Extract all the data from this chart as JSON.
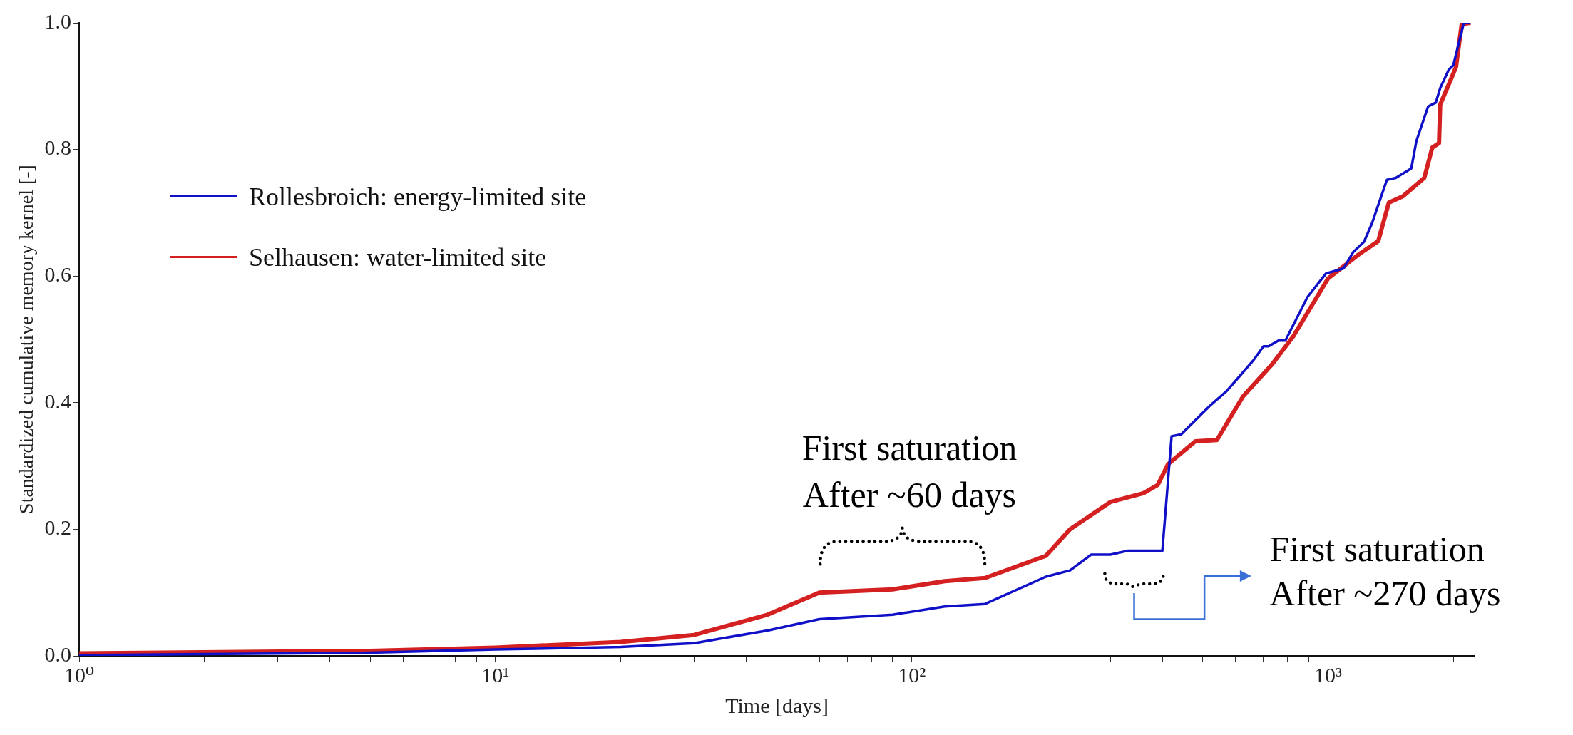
{
  "chart_data": {
    "type": "line",
    "xlabel": "Time [days]",
    "ylabel": "Standardized cumulative memory kernel [-]",
    "log": "x",
    "xlim": [
      1,
      2250
    ],
    "ylim": [
      0,
      1
    ],
    "xticks": [
      {
        "value": 1,
        "label": "10⁰"
      },
      {
        "value": 2,
        "label": null
      },
      {
        "value": 3,
        "label": null
      },
      {
        "value": 4,
        "label": null
      },
      {
        "value": 5,
        "label": null
      },
      {
        "value": 6,
        "label": null
      },
      {
        "value": 7,
        "label": null
      },
      {
        "value": 8,
        "label": null
      },
      {
        "value": 9,
        "label": null
      },
      {
        "value": 10,
        "label": "10¹"
      },
      {
        "value": 20,
        "label": null
      },
      {
        "value": 30,
        "label": null
      },
      {
        "value": 40,
        "label": null
      },
      {
        "value": 50,
        "label": null
      },
      {
        "value": 60,
        "label": null
      },
      {
        "value": 70,
        "label": null
      },
      {
        "value": 80,
        "label": null
      },
      {
        "value": 90,
        "label": null
      },
      {
        "value": 100,
        "label": "10²"
      },
      {
        "value": 200,
        "label": null
      },
      {
        "value": 300,
        "label": null
      },
      {
        "value": 400,
        "label": null
      },
      {
        "value": 500,
        "label": null
      },
      {
        "value": 600,
        "label": null
      },
      {
        "value": 700,
        "label": null
      },
      {
        "value": 800,
        "label": null
      },
      {
        "value": 900,
        "label": null
      },
      {
        "value": 1000,
        "label": "10³"
      },
      {
        "value": 2000,
        "label": null
      }
    ],
    "yticks": [
      {
        "value": 0,
        "label": "0.0"
      },
      0.2,
      0.4,
      0.6,
      0.8,
      {
        "value": 1,
        "label": "1.0"
      }
    ],
    "grid": false,
    "legend": "top left",
    "marker": "none",
    "line_style": "solid",
    "series": [
      {
        "name": "Rollesbroich: energy-limited site",
        "color": "#1010c8",
        "x": [
          1,
          5,
          10,
          20,
          30,
          45,
          60,
          90,
          120,
          150,
          210,
          240,
          270,
          300,
          330,
          400,
          421,
          444,
          520,
          570,
          610,
          662,
          700,
          720,
          760,
          790,
          893,
          989,
          1090,
          1150,
          1220,
          1275,
          1385,
          1455,
          1585,
          1630,
          1740,
          1815,
          1860,
          1950,
          2000,
          2120,
          2200
        ],
        "values": [
          0.001,
          0.005,
          0.01,
          0.014,
          0.02,
          0.04,
          0.058,
          0.065,
          0.078,
          0.082,
          0.125,
          0.135,
          0.16,
          0.16,
          0.166,
          0.166,
          0.347,
          0.35,
          0.395,
          0.418,
          0.44,
          0.467,
          0.489,
          0.489,
          0.498,
          0.498,
          0.567,
          0.604,
          0.612,
          0.638,
          0.654,
          0.683,
          0.752,
          0.755,
          0.77,
          0.813,
          0.868,
          0.874,
          0.897,
          0.926,
          0.933,
          1.0,
          1.0
        ]
      },
      {
        "name": "Selhausen: water-limited site",
        "color": "#d42020",
        "x": [
          1,
          5,
          10,
          20,
          30,
          45,
          60,
          90,
          120,
          150,
          210,
          240,
          300,
          360,
          390,
          413,
          480,
          541,
          625,
          735,
          826,
          1000,
          1190,
          1320,
          1400,
          1514,
          1703,
          1780,
          1848,
          1860,
          1980,
          2030,
          2095,
          2200
        ],
        "values": [
          0.004,
          0.008,
          0.013,
          0.022,
          0.033,
          0.065,
          0.1,
          0.105,
          0.118,
          0.123,
          0.158,
          0.2,
          0.243,
          0.257,
          0.27,
          0.303,
          0.339,
          0.341,
          0.41,
          0.461,
          0.505,
          0.596,
          0.635,
          0.655,
          0.716,
          0.726,
          0.755,
          0.803,
          0.81,
          0.871,
          0.913,
          0.93,
          0.998,
          1.0
        ]
      }
    ],
    "annotations": [
      "First saturation\nAfter ~60 days",
      "First saturation\nAfter ~270 days"
    ]
  }
}
